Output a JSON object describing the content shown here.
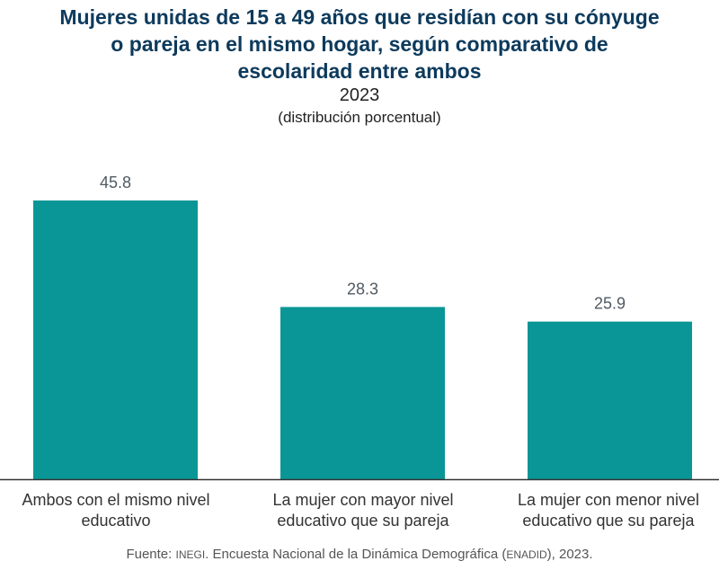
{
  "chart_data": {
    "type": "bar",
    "title": "Mujeres unidas de 15 a 49 años que residían con su cónyuge o pareja en el mismo hogar, según comparativo de escolaridad entre ambos",
    "title_lines": [
      "Mujeres unidas de 15 a 49 años que residían con su cónyuge",
      "o pareja en el mismo hogar, según comparativo de",
      "escolaridad entre ambos"
    ],
    "subtitle": "2023",
    "unit_note": "(distribución porcentual)",
    "categories": [
      "Ambos con el mismo nivel educativo",
      "La mujer con mayor nivel educativo que su pareja",
      "La mujer con menor nivel educativo que su pareja"
    ],
    "category_lines": [
      [
        "Ambos con el mismo nivel",
        "educativo"
      ],
      [
        "La mujer con mayor nivel",
        "educativo que su pareja"
      ],
      [
        "La mujer con menor nivel",
        "educativo que su pareja"
      ]
    ],
    "values": [
      45.8,
      28.3,
      25.9
    ],
    "value_labels": [
      "45.8",
      "28.3",
      "25.9"
    ],
    "xlabel": "",
    "ylabel": "",
    "ylim": [
      0,
      50
    ],
    "grid": false,
    "legend": "none",
    "bar_color": "#0a9696",
    "axis_color": "#333333"
  },
  "source": {
    "prefix": "Fuente: ",
    "org": "INEGI",
    "middle": ". Encuesta Nacional de la Dinámica Demográfica (",
    "acronym": "ENADID",
    "suffix": "), 2023."
  }
}
